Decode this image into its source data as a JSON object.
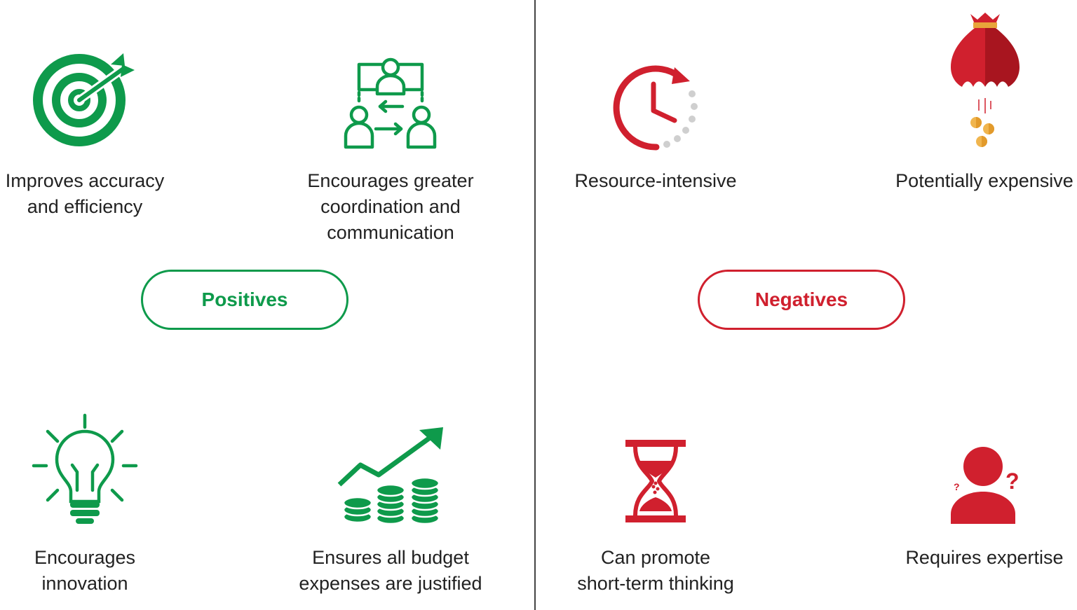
{
  "colors": {
    "positive": "#0e9a4b",
    "negative": "#d0202e",
    "text": "#222222",
    "divider": "#444444"
  },
  "positives": {
    "label": "Positives",
    "items": [
      {
        "icon": "target-icon",
        "lines": [
          "Improves accuracy",
          "and efficiency"
        ]
      },
      {
        "icon": "team-coordination-icon",
        "lines": [
          "Encourages greater",
          "coordination and",
          "communication"
        ]
      },
      {
        "icon": "lightbulb-icon",
        "lines": [
          "Encourages",
          "innovation"
        ]
      },
      {
        "icon": "growth-coins-icon",
        "lines": [
          "Ensures all budget",
          "expenses are justified"
        ]
      }
    ]
  },
  "negatives": {
    "label": "Negatives",
    "items": [
      {
        "icon": "clock-icon",
        "lines": [
          "Resource-intensive"
        ]
      },
      {
        "icon": "money-bag-icon",
        "lines": [
          "Potentially expensive"
        ]
      },
      {
        "icon": "hourglass-icon",
        "lines": [
          "Can promote",
          "short-term thinking"
        ]
      },
      {
        "icon": "confused-person-icon",
        "lines": [
          "Requires expertise"
        ]
      }
    ]
  }
}
